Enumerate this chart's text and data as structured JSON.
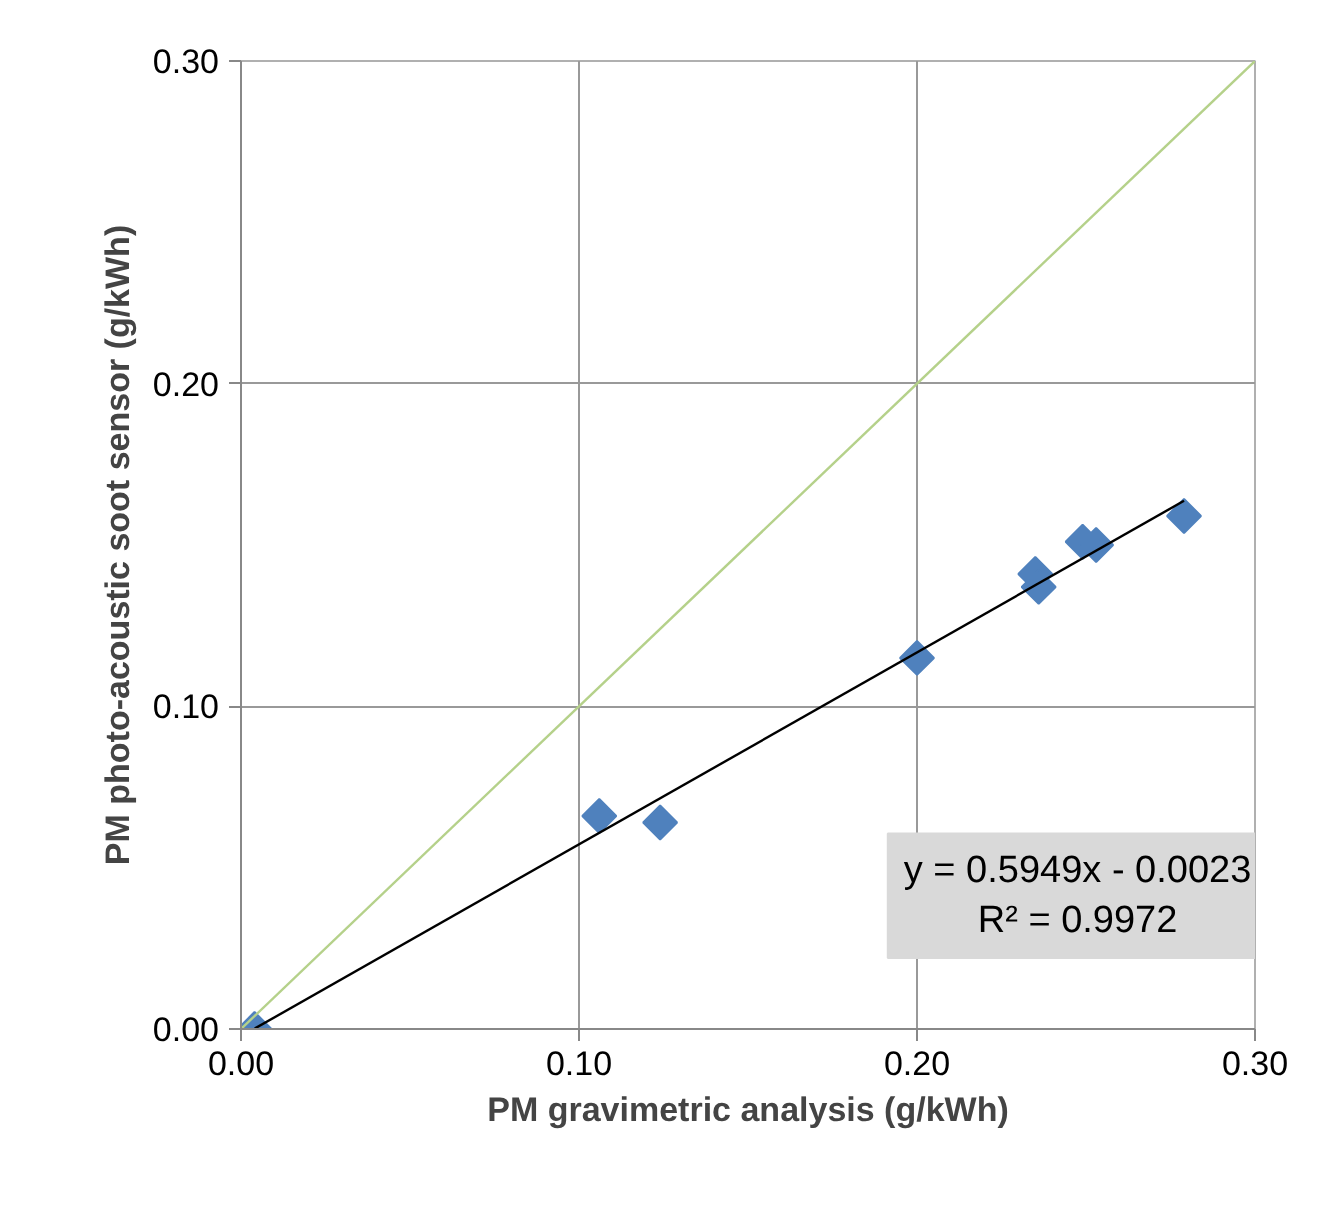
{
  "chart_data": {
    "type": "scatter",
    "xlabel": "PM gravimetric analysis (g/kWh)",
    "ylabel": "PM photo-acoustic soot sensor (g/kWh)",
    "series": [
      {
        "color": "#4f81bd",
        "marker": "diamond",
        "x": [
          0.004,
          0.106,
          0.124,
          0.2,
          0.235,
          0.236,
          0.249,
          0.253,
          0.279
        ],
        "values": [
          0.0,
          0.066,
          0.064,
          0.115,
          0.141,
          0.137,
          0.151,
          0.15,
          0.159
        ]
      },
      {
        "type": "line",
        "color": "#000000",
        "x": [
          0.004,
          0.279
        ],
        "values": [
          0.0001,
          0.1637
        ]
      },
      {
        "type": "line",
        "color": "#b5d18a",
        "x": [
          0,
          0.3
        ],
        "values": [
          0,
          0.3
        ]
      }
    ],
    "xlim": [
      0,
      0.3
    ],
    "ylim": [
      0,
      0.3
    ],
    "xticks": [
      {
        "value": 0,
        "label": "0.00"
      },
      {
        "value": 0.1,
        "label": "0.10"
      },
      {
        "value": 0.2,
        "label": "0.20"
      },
      {
        "value": 0.3,
        "label": "0.30"
      }
    ],
    "yticks": [
      {
        "value": 0,
        "label": "0.00"
      },
      {
        "value": 0.1,
        "label": "0.10"
      },
      {
        "value": 0.2,
        "label": "0.20"
      },
      {
        "value": 0.3,
        "label": "0.30"
      }
    ],
    "grid": true,
    "annotations": [
      "y = 0.5949x - 0.0023",
      "R² = 0.9972"
    ]
  }
}
